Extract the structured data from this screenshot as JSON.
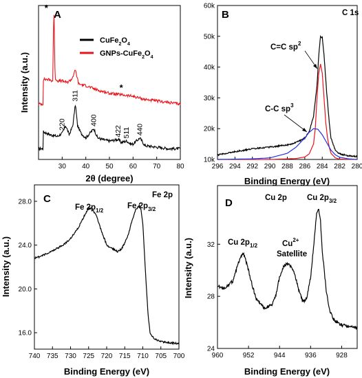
{
  "chart_data": [
    {
      "panel": "A",
      "type": "line",
      "xlabel": "2θ (degree)",
      "ylabel": "Intensity (a.u.)",
      "xlim": [
        20,
        80
      ],
      "xticks": [
        30,
        40,
        50,
        60,
        70,
        80
      ],
      "ylim": [
        0,
        100
      ],
      "yticks_shown": false,
      "grid": false,
      "legend_position": "top-right",
      "series": [
        {
          "name": "CuFe2O4",
          "color": "#000000",
          "x": [
            22,
            25,
            28,
            30,
            31.5,
            33,
            34.5,
            35.6,
            36.5,
            38,
            40,
            43.4,
            45,
            47,
            50,
            53.8,
            55,
            57.3,
            59,
            60,
            62.9,
            65,
            70,
            75,
            80
          ],
          "y": [
            18,
            16,
            15,
            17,
            22,
            16,
            22,
            36,
            22,
            17,
            14,
            20,
            14,
            13,
            12,
            13,
            11,
            12,
            10,
            10,
            14,
            9,
            8,
            7,
            7
          ]
        },
        {
          "name": "GNPs-CuFe2O4",
          "color": "#e8141b",
          "x": [
            22,
            24,
            26,
            26.5,
            27,
            28,
            30,
            32,
            34,
            35.6,
            37,
            40,
            45,
            50,
            55,
            60,
            65,
            70,
            75,
            80
          ],
          "y": [
            52,
            52,
            51,
            100,
            53,
            51,
            51,
            50,
            52,
            58,
            49,
            48,
            45,
            43,
            42,
            41,
            39,
            38,
            37,
            36
          ]
        }
      ],
      "peak_labels": [
        {
          "text": "220",
          "x": 30.1
        },
        {
          "text": "311",
          "x": 35.6
        },
        {
          "text": "400",
          "x": 43.4
        },
        {
          "text": "422",
          "x": 53.8
        },
        {
          "text": "511",
          "x": 57.3
        },
        {
          "text": "440",
          "x": 62.9
        }
      ],
      "markers": [
        {
          "text": "*",
          "x": 26.5
        },
        {
          "text": "*",
          "x": 55
        }
      ]
    },
    {
      "panel": "B",
      "type": "line",
      "xlabel": "Binding Energy (eV)",
      "ylabel": "",
      "xlim": [
        296,
        280
      ],
      "xticks": [
        296,
        294,
        292,
        290,
        288,
        286,
        284,
        282,
        280
      ],
      "ylim": [
        10000,
        60000
      ],
      "yticks": [
        10000,
        20000,
        30000,
        40000,
        50000,
        60000
      ],
      "ytick_labels": [
        "10k",
        "20k",
        "30k",
        "40k",
        "50k",
        "60k"
      ],
      "grid": false,
      "corner_label": "C 1s",
      "series": [
        {
          "color": "#000000",
          "x": [
            296,
            294,
            292,
            290,
            288,
            287,
            286,
            285.5,
            285,
            284.6,
            284.4,
            284.2,
            284.0,
            283.8,
            283.5,
            283.2,
            283,
            282.5,
            282,
            281,
            280
          ],
          "y": [
            11500,
            12500,
            13500,
            14000,
            14700,
            15500,
            17000,
            19000,
            24000,
            34000,
            44000,
            50000,
            49500,
            44000,
            32000,
            22000,
            17000,
            13000,
            11800,
            11200,
            11000
          ]
        },
        {
          "color": "#e8141b",
          "x": [
            296,
            290,
            287,
            286,
            285.5,
            285,
            284.8,
            284.6,
            284.4,
            284.2,
            284.0,
            283.8,
            283.6,
            283.4,
            283.2,
            283,
            282.5,
            282,
            280
          ],
          "y": [
            10000,
            10000,
            10300,
            10800,
            11800,
            15000,
            20000,
            30000,
            38000,
            41000,
            38000,
            30000,
            22000,
            17000,
            14000,
            12000,
            10500,
            10100,
            10000
          ]
        },
        {
          "color": "#1c2fe8",
          "x": [
            296,
            292,
            290,
            288,
            287,
            286,
            285.5,
            285,
            284.5,
            284,
            283.5,
            283,
            282.5,
            282,
            281,
            280
          ],
          "y": [
            10000,
            10200,
            10500,
            12000,
            14000,
            17000,
            18800,
            20000,
            19800,
            18000,
            15500,
            13000,
            11500,
            10700,
            10200,
            10000
          ]
        }
      ],
      "annotations": [
        {
          "text": "C=C sp",
          "sup": "2"
        },
        {
          "text": "C-C sp",
          "sup": "3"
        }
      ]
    },
    {
      "panel": "C",
      "type": "line",
      "xlabel": "Binding Energy (eV)",
      "ylabel": "Intensity (a.u.)",
      "xlim": [
        740,
        700
      ],
      "xticks": [
        740,
        735,
        730,
        725,
        720,
        715,
        710,
        705,
        700
      ],
      "ylim": [
        14.5,
        29.5
      ],
      "yticks": [
        16,
        20,
        24,
        28
      ],
      "ytick_labels": [
        "16.0",
        "20.0",
        "24.0",
        "28.0"
      ],
      "grid": false,
      "corner_label": "Fe 2p",
      "series": [
        {
          "color": "#000000",
          "x": [
            740,
            738,
            735,
            732,
            730,
            728,
            726,
            725,
            724.3,
            723,
            722,
            720,
            718,
            717,
            716,
            715,
            714,
            713,
            712,
            711,
            710.5,
            710,
            709.5,
            709,
            708.5,
            708,
            707,
            706,
            705,
            703,
            700
          ],
          "y": [
            22.8,
            23.0,
            23.5,
            24.0,
            24.6,
            25.5,
            26.8,
            27.3,
            27.4,
            26.8,
            25.8,
            24.0,
            23.6,
            23.4,
            23.6,
            24.2,
            25.0,
            26.2,
            27.2,
            27.6,
            27.3,
            26.0,
            23.0,
            20.0,
            17.5,
            16.0,
            15.5,
            15.3,
            15.2,
            15.1,
            15.0
          ]
        }
      ],
      "annotations": [
        {
          "text": "Fe 2p",
          "sub": "1/2"
        },
        {
          "text": "Fe 2p",
          "sub": "3/2"
        }
      ]
    },
    {
      "panel": "D",
      "type": "line",
      "xlabel": "Binding Energy (eV)",
      "ylabel": "Intensity (a.u.)",
      "xlim": [
        960,
        924
      ],
      "xticks": [
        960,
        952,
        944,
        936,
        928
      ],
      "ylim": [
        24,
        36.5
      ],
      "yticks": [
        24,
        28,
        32
      ],
      "ytick_labels": [
        "24",
        "28",
        "32"
      ],
      "grid": false,
      "corner_label": "Cu 2p",
      "series": [
        {
          "color": "#000000",
          "x": [
            960,
            958,
            956,
            955,
            954,
            953.5,
            953,
            952,
            951,
            950,
            948,
            946,
            945,
            944,
            943,
            942,
            941,
            940,
            939,
            938,
            937,
            936,
            935,
            934.5,
            934,
            933.5,
            933,
            932,
            931,
            930,
            928,
            926,
            924
          ],
          "y": [
            28.8,
            28.6,
            29.2,
            30.2,
            31.0,
            31.3,
            31.1,
            30.0,
            28.8,
            27.8,
            27.1,
            27.3,
            28.0,
            29.5,
            30.3,
            30.5,
            30.3,
            29.6,
            28.4,
            27.6,
            27.8,
            29.5,
            32.5,
            34.2,
            34.8,
            34.0,
            31.5,
            28.5,
            26.8,
            26.2,
            25.8,
            25.7,
            25.6
          ]
        }
      ],
      "annotations": [
        {
          "text": "Cu 2p",
          "sub": "1/2"
        },
        {
          "text": "Cu",
          "sup": "2+",
          "text2": "Satellite"
        },
        {
          "text": "Cu 2p",
          "sub": "3/2"
        }
      ]
    }
  ]
}
